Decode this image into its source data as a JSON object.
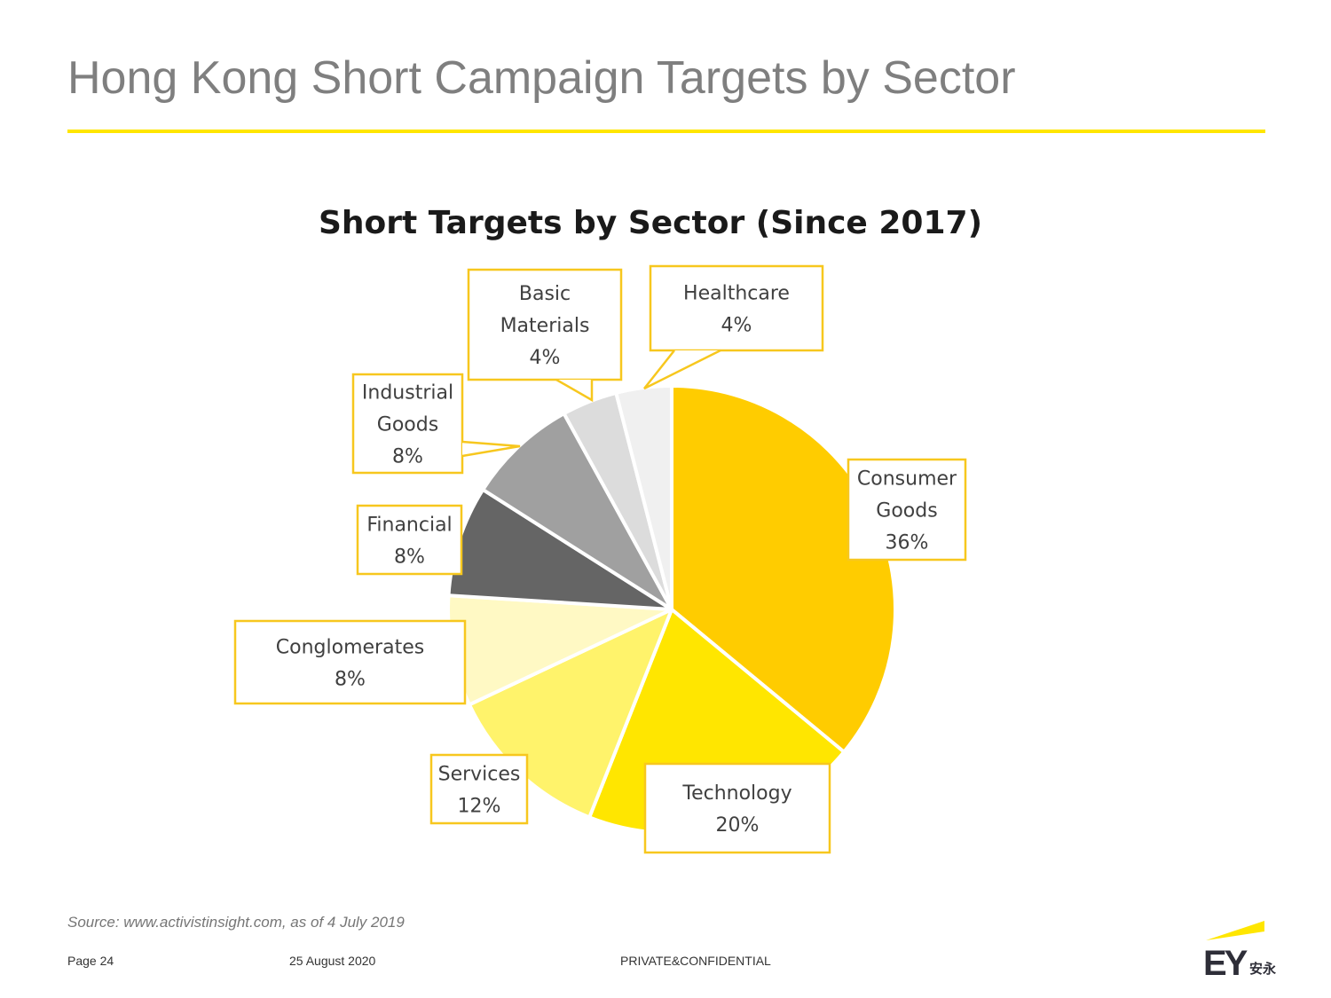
{
  "page": {
    "title": "Hong Kong Short Campaign Targets by Sector",
    "source": "Source:  www.activistinsight.com, as of 4 July 2019",
    "footer": {
      "page": "Page 24",
      "date": "25 August 2020",
      "confidentiality": "PRIVATE&CONFIDENTIAL"
    },
    "logo": {
      "mark": "EY",
      "mark_cn": "安永",
      "brand_color": "#ffe600",
      "mark_color": "#2e2e38"
    }
  },
  "chart_data": {
    "type": "pie",
    "title": "Short Targets by Sector (Since 2017)",
    "categories": [
      "Consumer Goods",
      "Technology",
      "Services",
      "Conglomerates",
      "Financial",
      "Industrial Goods",
      "Basic Materials",
      "Healthcare"
    ],
    "values": [
      36,
      20,
      12,
      8,
      8,
      8,
      4,
      4
    ],
    "value_labels": [
      "36%",
      "20%",
      "12%",
      "8%",
      "8%",
      "8%",
      "4%",
      "4%"
    ],
    "label_lines": [
      [
        "Consumer",
        "Goods",
        "36%"
      ],
      [
        "Technology",
        "20%"
      ],
      [
        "Services",
        "12%"
      ],
      [
        "Conglomerates",
        "8%"
      ],
      [
        "Financial",
        "8%"
      ],
      [
        "Industrial",
        "Goods",
        "8%"
      ],
      [
        "Basic",
        "Materials",
        "4%"
      ],
      [
        "Healthcare",
        "4%"
      ]
    ],
    "colors": [
      "#ffcc00",
      "#ffe600",
      "#fff36b",
      "#fff9c4",
      "#656565",
      "#a0a0a0",
      "#dcdcdc",
      "#f0f0f0"
    ],
    "start": "top, clockwise",
    "label_style": "callout boxes with yellow border",
    "label_border_color": "#f7c71e",
    "legend": false
  }
}
